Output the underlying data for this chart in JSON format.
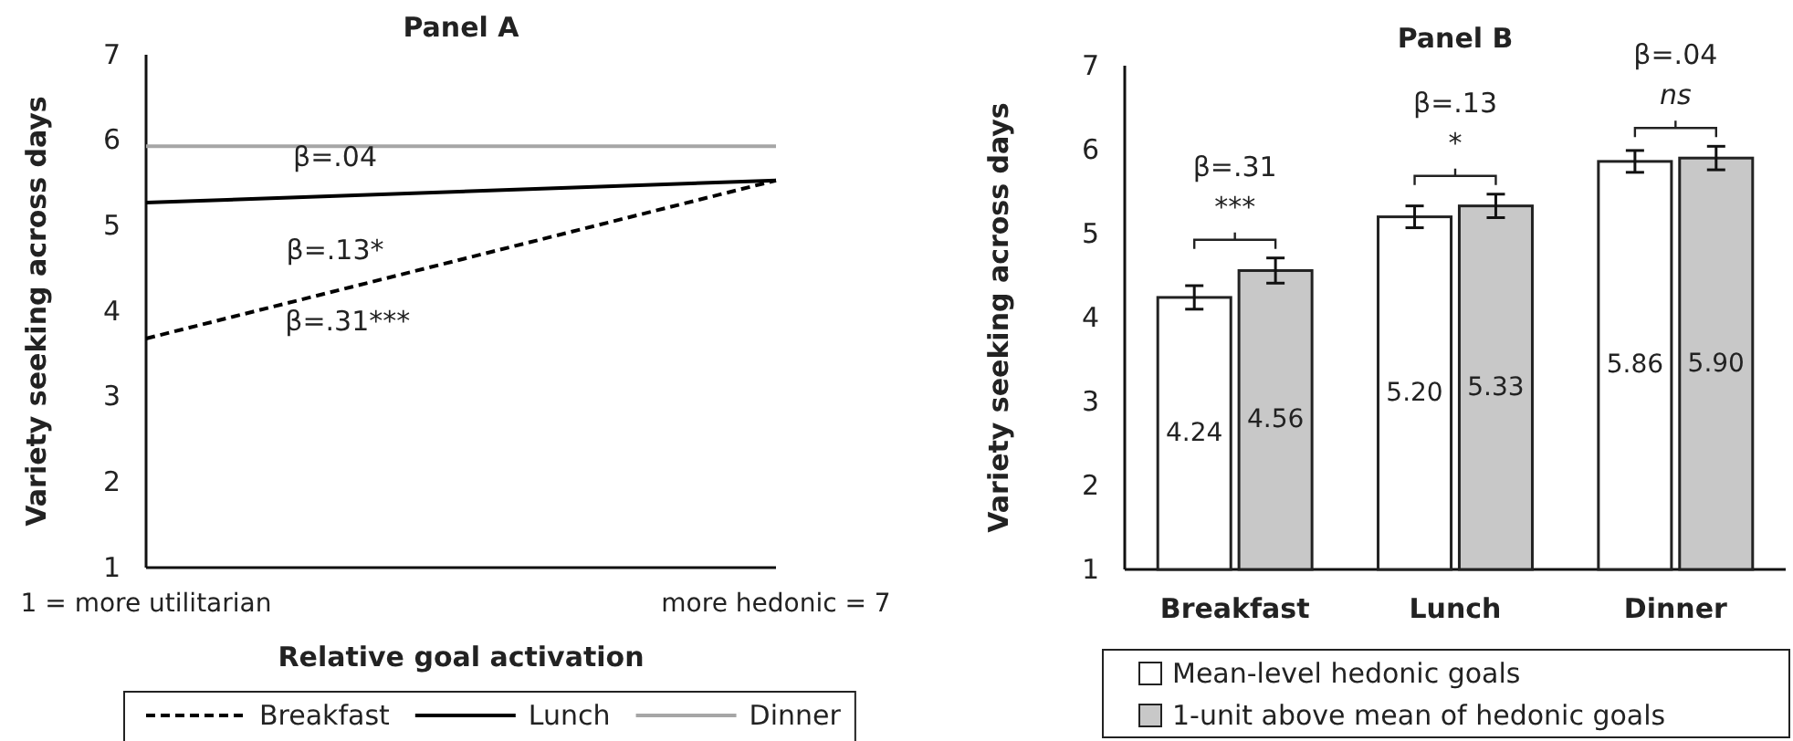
{
  "chart_data": [
    {
      "type": "line",
      "title": "Panel A",
      "xlabel": "Relative goal activation",
      "ylabel": "Variety seeking across days",
      "xlim": [
        1,
        7
      ],
      "xticks": [
        {
          "value": 1,
          "label": "1 = more utilitarian"
        },
        {
          "value": 7,
          "label": "more hedonic = 7"
        }
      ],
      "ylim": [
        1,
        7
      ],
      "yticks": [
        1,
        2,
        3,
        4,
        5,
        6,
        7
      ],
      "grid": false,
      "legend": "bottom",
      "marker": "none",
      "x": [
        1,
        7
      ],
      "series": [
        {
          "name": "Breakfast",
          "color": "#000000",
          "line_style": "dashed",
          "values": [
            3.68,
            5.53
          ]
        },
        {
          "name": "Lunch",
          "color": "#000000",
          "line_style": "solid",
          "values": [
            5.27,
            5.53
          ]
        },
        {
          "name": "Dinner",
          "color": "#a6a6a6",
          "line_style": "solid",
          "values": [
            5.93,
            5.93
          ]
        }
      ],
      "annotations": [
        "β=.04",
        "β=.13*",
        "β=.31***"
      ]
    },
    {
      "type": "bar",
      "title": "Panel B",
      "ylabel": "Variety seeking across days",
      "categories": [
        "Breakfast",
        "Lunch",
        "Dinner"
      ],
      "ylim": [
        1,
        7
      ],
      "yticks": [
        1,
        2,
        3,
        4,
        5,
        6,
        7
      ],
      "grid": false,
      "legend": "bottom",
      "series": [
        {
          "name": "Mean-level hedonic goals",
          "color": "#ffffff",
          "values": [
            4.24,
            5.2,
            5.86
          ],
          "value_labels": [
            "4.24",
            "5.20",
            "5.86"
          ],
          "errors": [
            0.14,
            0.13,
            0.13
          ]
        },
        {
          "name": "1-unit above mean of hedonic goals",
          "color": "#c8c8c8",
          "values": [
            4.56,
            5.33,
            5.9
          ],
          "value_labels": [
            "4.56",
            "5.33",
            "5.90"
          ],
          "errors": [
            0.15,
            0.14,
            0.14
          ]
        }
      ],
      "annotations": [
        "β=.31",
        "***",
        "β=.13",
        "*",
        "β=.04",
        "ns"
      ]
    }
  ]
}
